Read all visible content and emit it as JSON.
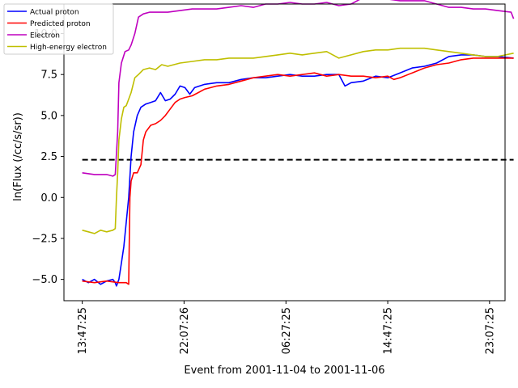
{
  "chart_data": {
    "type": "line",
    "xlabel": "Event from 2001-11-04 to 2001-11-06",
    "ylabel": "ln(Flux (/cc/s/sr))",
    "ylim": [
      -6.3,
      11.8
    ],
    "xlim": [
      -1.5,
      34.6
    ],
    "x_unit": "hours since 13:47:25",
    "x_ticks": [
      {
        "value": 0,
        "label": "13:47:25"
      },
      {
        "value": 8.33,
        "label": "22:07:26"
      },
      {
        "value": 16.67,
        "label": "06:27:25"
      },
      {
        "value": 25.0,
        "label": "14:47:25"
      },
      {
        "value": 33.33,
        "label": "23:07:25"
      }
    ],
    "y_ticks": [
      -5.0,
      -2.5,
      0.0,
      2.5,
      5.0,
      7.5,
      10.0
    ],
    "y_tick_labels": [
      "−5.0",
      "−2.5",
      "0.0",
      "2.5",
      "5.0",
      "7.5",
      "10.0"
    ],
    "legend_position": "top-left",
    "threshold": {
      "value": 2.3,
      "x_range": [
        0,
        35.3
      ],
      "color": "#000000",
      "style": "dashed"
    },
    "series": [
      {
        "name": "Actual proton",
        "color": "#0000ff",
        "points": [
          [
            0,
            -5.0
          ],
          [
            0.5,
            -5.2
          ],
          [
            1.0,
            -5.0
          ],
          [
            1.5,
            -5.3
          ],
          [
            2.0,
            -5.1
          ],
          [
            2.5,
            -5.0
          ],
          [
            2.7,
            -5.2
          ],
          [
            2.8,
            -5.4
          ],
          [
            3.0,
            -5.0
          ],
          [
            3.2,
            -4.0
          ],
          [
            3.4,
            -3.0
          ],
          [
            3.6,
            -1.5
          ],
          [
            3.8,
            0.0
          ],
          [
            4.0,
            2.5
          ],
          [
            4.2,
            4.0
          ],
          [
            4.5,
            5.0
          ],
          [
            4.8,
            5.5
          ],
          [
            5.2,
            5.7
          ],
          [
            5.6,
            5.8
          ],
          [
            6.0,
            5.9
          ],
          [
            6.4,
            6.4
          ],
          [
            6.8,
            5.9
          ],
          [
            7.2,
            6.0
          ],
          [
            7.6,
            6.3
          ],
          [
            8.0,
            6.8
          ],
          [
            8.4,
            6.7
          ],
          [
            8.8,
            6.3
          ],
          [
            9.2,
            6.7
          ],
          [
            10,
            6.9
          ],
          [
            11,
            7.0
          ],
          [
            12,
            7.0
          ],
          [
            13,
            7.2
          ],
          [
            14,
            7.3
          ],
          [
            15,
            7.3
          ],
          [
            16,
            7.4
          ],
          [
            17,
            7.5
          ],
          [
            18,
            7.4
          ],
          [
            19,
            7.4
          ],
          [
            20,
            7.5
          ],
          [
            21,
            7.5
          ],
          [
            21.5,
            6.8
          ],
          [
            22,
            7.0
          ],
          [
            23,
            7.1
          ],
          [
            24,
            7.4
          ],
          [
            25,
            7.3
          ],
          [
            26,
            7.6
          ],
          [
            27,
            7.9
          ],
          [
            28,
            8.0
          ],
          [
            29,
            8.2
          ],
          [
            30,
            8.6
          ],
          [
            31,
            8.7
          ],
          [
            32,
            8.7
          ],
          [
            33,
            8.6
          ],
          [
            34,
            8.6
          ],
          [
            35.3,
            8.5
          ]
        ]
      },
      {
        "name": "Predicted proton",
        "color": "#ff0000",
        "points": [
          [
            0,
            -5.1
          ],
          [
            1,
            -5.2
          ],
          [
            2,
            -5.1
          ],
          [
            3,
            -5.2
          ],
          [
            3.6,
            -5.2
          ],
          [
            3.8,
            -5.3
          ],
          [
            3.9,
            0.0
          ],
          [
            4.0,
            1.0
          ],
          [
            4.2,
            1.5
          ],
          [
            4.5,
            1.5
          ],
          [
            4.8,
            2.0
          ],
          [
            5.0,
            3.5
          ],
          [
            5.2,
            4.0
          ],
          [
            5.6,
            4.4
          ],
          [
            6.0,
            4.5
          ],
          [
            6.4,
            4.7
          ],
          [
            6.8,
            5.0
          ],
          [
            7.2,
            5.4
          ],
          [
            7.6,
            5.8
          ],
          [
            8.0,
            6.0
          ],
          [
            8.4,
            6.1
          ],
          [
            9,
            6.2
          ],
          [
            9.5,
            6.4
          ],
          [
            10,
            6.6
          ],
          [
            11,
            6.8
          ],
          [
            12,
            6.9
          ],
          [
            13,
            7.1
          ],
          [
            14,
            7.3
          ],
          [
            15,
            7.4
          ],
          [
            16,
            7.5
          ],
          [
            17,
            7.4
          ],
          [
            18,
            7.5
          ],
          [
            19,
            7.6
          ],
          [
            20,
            7.4
          ],
          [
            21,
            7.5
          ],
          [
            22,
            7.4
          ],
          [
            23,
            7.4
          ],
          [
            24,
            7.3
          ],
          [
            25,
            7.4
          ],
          [
            25.5,
            7.2
          ],
          [
            26,
            7.3
          ],
          [
            27,
            7.6
          ],
          [
            28,
            7.9
          ],
          [
            29,
            8.1
          ],
          [
            30,
            8.2
          ],
          [
            31,
            8.4
          ],
          [
            32,
            8.5
          ],
          [
            33,
            8.5
          ],
          [
            34,
            8.5
          ],
          [
            35.3,
            8.5
          ]
        ]
      },
      {
        "name": "Electron",
        "color": "#bf00bf",
        "points": [
          [
            0,
            1.5
          ],
          [
            1,
            1.4
          ],
          [
            2,
            1.4
          ],
          [
            2.5,
            1.3
          ],
          [
            2.7,
            1.4
          ],
          [
            2.9,
            4.0
          ],
          [
            3.0,
            7.0
          ],
          [
            3.2,
            8.2
          ],
          [
            3.5,
            8.9
          ],
          [
            3.8,
            9.0
          ],
          [
            4.0,
            9.3
          ],
          [
            4.3,
            10.0
          ],
          [
            4.6,
            11.0
          ],
          [
            5.0,
            11.2
          ],
          [
            5.5,
            11.3
          ],
          [
            6,
            11.3
          ],
          [
            7,
            11.3
          ],
          [
            8,
            11.4
          ],
          [
            9,
            11.5
          ],
          [
            10,
            11.5
          ],
          [
            11,
            11.5
          ],
          [
            12,
            11.6
          ],
          [
            13,
            11.7
          ],
          [
            14,
            11.6
          ],
          [
            15,
            11.8
          ],
          [
            16,
            11.8
          ],
          [
            17,
            11.9
          ],
          [
            18,
            11.8
          ],
          [
            19,
            11.8
          ],
          [
            20,
            11.9
          ],
          [
            21,
            11.7
          ],
          [
            22,
            11.8
          ],
          [
            23,
            12.2
          ],
          [
            24,
            12.1
          ],
          [
            25,
            12.1
          ],
          [
            26,
            12.0
          ],
          [
            27,
            12.0
          ],
          [
            28,
            12.0
          ],
          [
            29,
            11.8
          ],
          [
            30,
            11.6
          ],
          [
            31,
            11.6
          ],
          [
            32,
            11.5
          ],
          [
            33,
            11.5
          ],
          [
            34,
            11.4
          ],
          [
            35.1,
            11.3
          ],
          [
            35.3,
            10.9
          ]
        ]
      },
      {
        "name": "High-energy electron",
        "color": "#bfbf00",
        "points": [
          [
            0,
            -2.0
          ],
          [
            0.5,
            -2.1
          ],
          [
            1.0,
            -2.2
          ],
          [
            1.5,
            -2.0
          ],
          [
            2.0,
            -2.1
          ],
          [
            2.5,
            -2.0
          ],
          [
            2.7,
            -1.9
          ],
          [
            2.8,
            0.0
          ],
          [
            2.9,
            1.5
          ],
          [
            3.0,
            3.5
          ],
          [
            3.2,
            4.8
          ],
          [
            3.4,
            5.5
          ],
          [
            3.6,
            5.6
          ],
          [
            3.8,
            6.0
          ],
          [
            4.0,
            6.4
          ],
          [
            4.3,
            7.3
          ],
          [
            4.6,
            7.5
          ],
          [
            5.0,
            7.8
          ],
          [
            5.5,
            7.9
          ],
          [
            6,
            7.8
          ],
          [
            6.5,
            8.1
          ],
          [
            7,
            8.0
          ],
          [
            8,
            8.2
          ],
          [
            9,
            8.3
          ],
          [
            10,
            8.4
          ],
          [
            11,
            8.4
          ],
          [
            12,
            8.5
          ],
          [
            13,
            8.5
          ],
          [
            14,
            8.5
          ],
          [
            15,
            8.6
          ],
          [
            16,
            8.7
          ],
          [
            17,
            8.8
          ],
          [
            18,
            8.7
          ],
          [
            19,
            8.8
          ],
          [
            20,
            8.9
          ],
          [
            21,
            8.5
          ],
          [
            22,
            8.7
          ],
          [
            23,
            8.9
          ],
          [
            24,
            9.0
          ],
          [
            25,
            9.0
          ],
          [
            26,
            9.1
          ],
          [
            27,
            9.1
          ],
          [
            28,
            9.1
          ],
          [
            29,
            9.0
          ],
          [
            30,
            8.9
          ],
          [
            31,
            8.8
          ],
          [
            32,
            8.7
          ],
          [
            33,
            8.6
          ],
          [
            34,
            8.6
          ],
          [
            35.3,
            8.8
          ]
        ]
      }
    ]
  }
}
